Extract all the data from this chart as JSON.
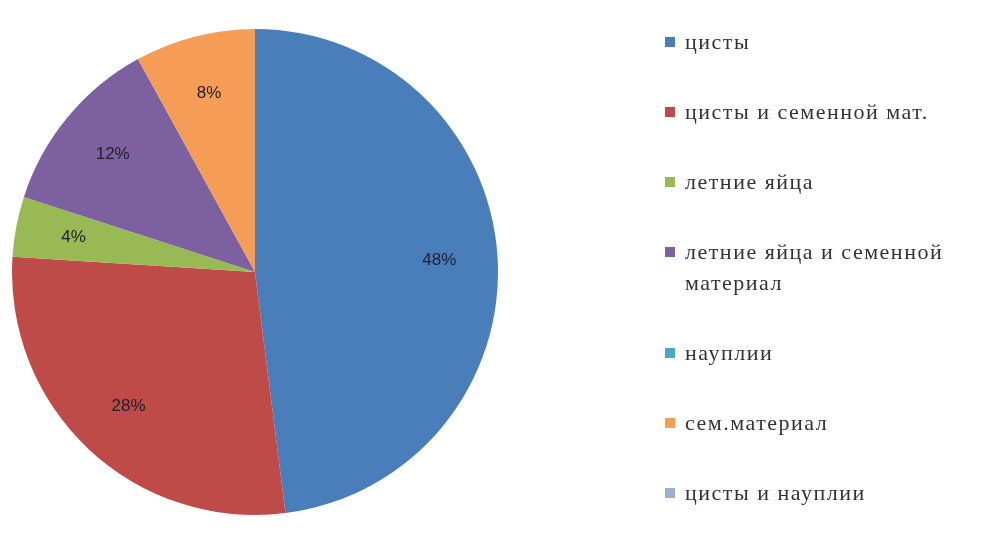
{
  "chart_data": {
    "type": "pie",
    "categories": [
      "цисты",
      "цисты и семенной мат.",
      "летние яйца",
      "летние яйца и семенной материал",
      "науплии",
      "сем.материал",
      "цисты и науплии"
    ],
    "values": [
      48,
      28,
      4,
      12,
      0,
      8,
      0
    ],
    "colors": [
      "#4a7ebb",
      "#be4b48",
      "#98b954",
      "#7d60a0",
      "#46aac5",
      "#f59d56",
      "#a0aed0"
    ],
    "value_labels": [
      "48%",
      "28%",
      "4%",
      "12%",
      null,
      "8%",
      null
    ],
    "legend": "right"
  }
}
